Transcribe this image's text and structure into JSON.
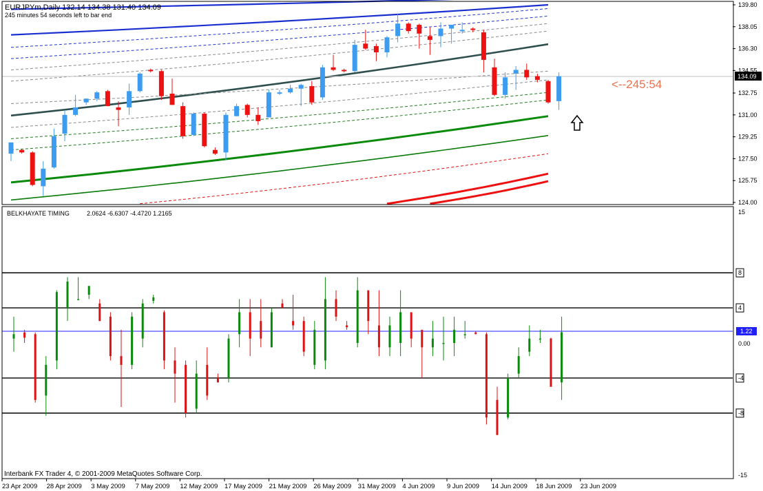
{
  "header": {
    "symbol_line": "EURJPYm,Daily  132.14 134.38 131.40 134.09",
    "timer_line": "245 minutes 54 seconds left to bar end"
  },
  "price_pane": {
    "countdown_label": "<--245:54",
    "current_price_label": "134.09",
    "current_price": 134.09,
    "y_range": [
      124.0,
      139.8
    ],
    "y_ticks": [
      "139.80",
      "138.05",
      "136.30",
      "134.55",
      "132.75",
      "131.00",
      "129.25",
      "127.50",
      "125.75",
      "124.00"
    ]
  },
  "indicator_pane": {
    "name": "BELKHAYATE TIMING",
    "values_line": "2.0624 -6.6307 -4.4720 1.2165",
    "y_range": [
      -15,
      15
    ],
    "y_ticks": [
      "15",
      "0.00",
      "-15"
    ],
    "level_labels": [
      "8",
      "4",
      "-4",
      "-8"
    ],
    "current_value_label": "1.22",
    "current_value": 1.22
  },
  "x_axis": {
    "labels": [
      "23 Apr 2009",
      "28 Apr 2009",
      "3 May 2009",
      "7 May 2009",
      "12 May 2009",
      "17 May 2009",
      "21 May 2009",
      "26 May 2009",
      "31 May 2009",
      "4 Jun 2009",
      "9 Jun 2009",
      "14 Jun 2009",
      "18 Jun 2009",
      "23 Jun 2009"
    ]
  },
  "footer": {
    "copyright": "Interbank FX Trader 4, © 2001-2009 MetaQuotes Software Corp."
  },
  "colors": {
    "bull": "#3d9cf0",
    "bear": "#ee1111",
    "mid_band": "#2f4f4f",
    "axis_text": "#000000",
    "countdown": "#f07050"
  },
  "chart_data": [
    {
      "type": "candlestick",
      "series_name": "EURJPYm,Daily",
      "ylim": [
        124.0,
        139.8
      ],
      "candles": [
        {
          "o": 127.9,
          "h": 128.7,
          "l": 127.3,
          "c": 128.8
        },
        {
          "o": 128.2,
          "h": 128.3,
          "l": 127.9,
          "c": 128.0
        },
        {
          "o": 128.0,
          "h": 128.1,
          "l": 125.3,
          "c": 125.4
        },
        {
          "o": 125.3,
          "h": 127.3,
          "l": 124.5,
          "c": 126.7
        },
        {
          "o": 126.8,
          "h": 129.9,
          "l": 126.7,
          "c": 129.3
        },
        {
          "o": 129.5,
          "h": 131.4,
          "l": 128.9,
          "c": 131.0
        },
        {
          "o": 131.0,
          "h": 132.6,
          "l": 130.9,
          "c": 131.6
        },
        {
          "o": 132.0,
          "h": 132.3,
          "l": 131.8,
          "c": 132.3
        },
        {
          "o": 132.3,
          "h": 132.9,
          "l": 132.1,
          "c": 132.8
        },
        {
          "o": 132.9,
          "h": 133.0,
          "l": 131.7,
          "c": 131.7
        },
        {
          "o": 131.6,
          "h": 132.1,
          "l": 130.1,
          "c": 131.4
        },
        {
          "o": 131.6,
          "h": 133.5,
          "l": 131.0,
          "c": 132.9
        },
        {
          "o": 132.9,
          "h": 134.4,
          "l": 132.8,
          "c": 134.3
        },
        {
          "o": 134.6,
          "h": 134.7,
          "l": 134.4,
          "c": 134.5
        },
        {
          "o": 134.5,
          "h": 134.6,
          "l": 132.2,
          "c": 132.5
        },
        {
          "o": 132.7,
          "h": 133.9,
          "l": 131.8,
          "c": 131.8
        },
        {
          "o": 131.7,
          "h": 132.0,
          "l": 129.1,
          "c": 129.3
        },
        {
          "o": 129.4,
          "h": 131.2,
          "l": 129.3,
          "c": 131.1
        },
        {
          "o": 131.1,
          "h": 131.2,
          "l": 128.4,
          "c": 128.5
        },
        {
          "o": 128.2,
          "h": 128.4,
          "l": 127.8,
          "c": 127.9
        },
        {
          "o": 128.0,
          "h": 131.2,
          "l": 127.4,
          "c": 131.0
        },
        {
          "o": 130.9,
          "h": 131.9,
          "l": 130.9,
          "c": 131.7
        },
        {
          "o": 131.8,
          "h": 131.9,
          "l": 130.8,
          "c": 131.0
        },
        {
          "o": 131.0,
          "h": 131.6,
          "l": 130.2,
          "c": 130.5
        },
        {
          "o": 130.8,
          "h": 133.0,
          "l": 130.8,
          "c": 132.8
        },
        {
          "o": 132.8,
          "h": 133.0,
          "l": 132.6,
          "c": 132.8
        },
        {
          "o": 132.8,
          "h": 133.4,
          "l": 132.7,
          "c": 133.1
        },
        {
          "o": 133.1,
          "h": 133.5,
          "l": 131.7,
          "c": 133.4
        },
        {
          "o": 133.3,
          "h": 133.7,
          "l": 131.8,
          "c": 132.0
        },
        {
          "o": 132.4,
          "h": 135.0,
          "l": 132.2,
          "c": 134.8
        },
        {
          "o": 134.8,
          "h": 135.8,
          "l": 134.5,
          "c": 134.6
        },
        {
          "o": 134.6,
          "h": 134.7,
          "l": 134.4,
          "c": 134.5
        },
        {
          "o": 134.5,
          "h": 137.0,
          "l": 134.4,
          "c": 136.6
        },
        {
          "o": 136.7,
          "h": 137.8,
          "l": 136.2,
          "c": 136.3
        },
        {
          "o": 136.5,
          "h": 136.7,
          "l": 135.3,
          "c": 136.0
        },
        {
          "o": 136.0,
          "h": 137.3,
          "l": 135.6,
          "c": 137.2
        },
        {
          "o": 137.3,
          "h": 139.1,
          "l": 136.8,
          "c": 138.3
        },
        {
          "o": 138.3,
          "h": 138.4,
          "l": 137.5,
          "c": 137.7
        },
        {
          "o": 138.2,
          "h": 138.3,
          "l": 136.3,
          "c": 137.5
        },
        {
          "o": 137.3,
          "h": 138.0,
          "l": 135.8,
          "c": 137.0
        },
        {
          "o": 137.3,
          "h": 138.4,
          "l": 136.4,
          "c": 137.9
        },
        {
          "o": 137.9,
          "h": 138.2,
          "l": 136.7,
          "c": 138.2
        },
        {
          "o": 137.8,
          "h": 138.4,
          "l": 137.5,
          "c": 137.8
        },
        {
          "o": 137.9,
          "h": 138.0,
          "l": 137.6,
          "c": 137.8
        },
        {
          "o": 137.6,
          "h": 137.8,
          "l": 134.4,
          "c": 135.4
        },
        {
          "o": 134.8,
          "h": 135.5,
          "l": 132.5,
          "c": 132.6
        },
        {
          "o": 132.6,
          "h": 134.4,
          "l": 132.3,
          "c": 134.0
        },
        {
          "o": 134.3,
          "h": 134.9,
          "l": 133.0,
          "c": 134.6
        },
        {
          "o": 134.6,
          "h": 135.1,
          "l": 133.8,
          "c": 134.0
        },
        {
          "o": 134.1,
          "h": 134.3,
          "l": 133.6,
          "c": 133.8
        },
        {
          "o": 133.7,
          "h": 133.8,
          "l": 131.9,
          "c": 132.0
        },
        {
          "o": 132.1,
          "h": 134.4,
          "l": 131.4,
          "c": 134.09
        }
      ],
      "bands": [
        {
          "style": "blue-solid",
          "values": [
            [
              0,
              139.45
            ],
            [
              50,
              140.45
            ]
          ]
        },
        {
          "style": "blue-solid",
          "values": [
            [
              0,
              137.4
            ],
            [
              50,
              139.8
            ]
          ]
        },
        {
          "style": "blue-dash",
          "values": [
            [
              0,
              136.4
            ],
            [
              50,
              139.5
            ]
          ]
        },
        {
          "style": "blue-dash",
          "values": [
            [
              0,
              135.5
            ],
            [
              50,
              138.9
            ]
          ]
        },
        {
          "style": "gray-dash",
          "values": [
            [
              0,
              134.6
            ],
            [
              50,
              138.3
            ]
          ]
        },
        {
          "style": "gray-dash",
          "values": [
            [
              0,
              133.7
            ],
            [
              50,
              137.7
            ]
          ]
        },
        {
          "style": "slate-solid",
          "values": [
            [
              0,
              130.95
            ],
            [
              50,
              136.65
            ]
          ]
        },
        {
          "style": "gray-dash",
          "values": [
            [
              0,
              131.9
            ],
            [
              50,
              134.5
            ]
          ]
        },
        {
          "style": "gray-dash",
          "values": [
            [
              0,
              130.0
            ],
            [
              50,
              133.8
            ]
          ]
        },
        {
          "style": "green-dash",
          "values": [
            [
              0,
              129.1
            ],
            [
              50,
              132.8
            ]
          ]
        },
        {
          "style": "green-dash",
          "values": [
            [
              0,
              128.2
            ],
            [
              50,
              132.2
            ]
          ]
        },
        {
          "style": "green-solid-thick",
          "values": [
            [
              0,
              125.6
            ],
            [
              50,
              130.9
            ]
          ]
        },
        {
          "style": "green-solid",
          "values": [
            [
              0,
              124.2
            ],
            [
              50,
              129.35
            ]
          ]
        },
        {
          "style": "red-dash",
          "values": [
            [
              12,
              123.9
            ],
            [
              50,
              127.9
            ]
          ]
        },
        {
          "style": "red-solid-thick",
          "values": [
            [
              35,
              123.9
            ],
            [
              50,
              126.3
            ]
          ]
        },
        {
          "style": "red-solid-thick",
          "values": [
            [
              39,
              123.9
            ],
            [
              50,
              125.7
            ]
          ]
        }
      ]
    },
    {
      "type": "bar",
      "series_name": "BELKHAYATE TIMING",
      "ylim": [
        -15,
        15
      ],
      "levels": [
        8,
        4,
        -4,
        -8
      ],
      "bars": [
        {
          "o": 0.5,
          "h": 3.0,
          "l": -1.0,
          "c": 1.0
        },
        {
          "o": 1.2,
          "h": 1.5,
          "l": 0.0,
          "c": 0.6
        },
        {
          "o": 1.0,
          "h": 1.2,
          "l": -6.8,
          "c": -6.5
        },
        {
          "o": -6.0,
          "h": -1.5,
          "l": -8.3,
          "c": -2.5
        },
        {
          "o": -2.0,
          "h": 6.0,
          "l": -3.0,
          "c": 5.8
        },
        {
          "o": 4.0,
          "h": 7.5,
          "l": 2.5,
          "c": 7.0
        },
        {
          "o": 5.0,
          "h": 7.5,
          "l": 5.0,
          "c": 5.0
        },
        {
          "o": 5.5,
          "h": 6.5,
          "l": 5.0,
          "c": 6.5
        },
        {
          "o": 4.5,
          "h": 5.0,
          "l": 2.5,
          "c": 2.5
        },
        {
          "o": 3.0,
          "h": 3.5,
          "l": -2.0,
          "c": -1.5
        },
        {
          "o": -1.5,
          "h": 1.5,
          "l": -7.3,
          "c": -2.5
        },
        {
          "o": -2.5,
          "h": 3.5,
          "l": -3.0,
          "c": 3.0
        },
        {
          "o": 0.5,
          "h": 5.0,
          "l": -0.5,
          "c": 4.5
        },
        {
          "o": 4.8,
          "h": 5.5,
          "l": 4.5,
          "c": 5.2
        },
        {
          "o": 3.5,
          "h": 3.7,
          "l": -3.0,
          "c": -2.0
        },
        {
          "o": -2.0,
          "h": -0.5,
          "l": -6.8,
          "c": -3.5
        },
        {
          "o": -2.5,
          "h": -2.0,
          "l": -8.5,
          "c": -8.0
        },
        {
          "o": -7.5,
          "h": -2.0,
          "l": -8.0,
          "c": -3.5
        },
        {
          "o": -2.5,
          "h": -0.5,
          "l": -6.5,
          "c": -6.0
        },
        {
          "o": -4.0,
          "h": -3.5,
          "l": -4.5,
          "c": -4.5
        },
        {
          "o": -4.0,
          "h": 1.0,
          "l": -4.5,
          "c": 0.5
        },
        {
          "o": 1.0,
          "h": 5.0,
          "l": -0.5,
          "c": 3.5
        },
        {
          "o": 3.5,
          "h": 5.0,
          "l": -1.5,
          "c": 0.5
        },
        {
          "o": 2.5,
          "h": 5.0,
          "l": -0.5,
          "c": 0.5
        },
        {
          "o": -0.5,
          "h": 4.0,
          "l": -0.5,
          "c": 3.5
        },
        {
          "o": 4.5,
          "h": 5.0,
          "l": 4.0,
          "c": 4.0
        },
        {
          "o": 2.5,
          "h": 5.5,
          "l": 1.5,
          "c": 2.0
        },
        {
          "o": 2.5,
          "h": 3.0,
          "l": -1.5,
          "c": -1.0
        },
        {
          "o": -2.5,
          "h": 2.5,
          "l": -3.0,
          "c": 1.5
        },
        {
          "o": -2.0,
          "h": 7.5,
          "l": -3.0,
          "c": 5.0
        },
        {
          "o": 5.0,
          "h": 6.0,
          "l": 2.5,
          "c": 3.0
        },
        {
          "o": 2.0,
          "h": 2.5,
          "l": 1.5,
          "c": 1.8
        },
        {
          "o": 0.0,
          "h": 7.5,
          "l": -0.5,
          "c": 6.0
        },
        {
          "o": 6.0,
          "h": 6.0,
          "l": 1.0,
          "c": 2.5
        },
        {
          "o": 2.0,
          "h": 6.0,
          "l": -1.5,
          "c": -0.5
        },
        {
          "o": -0.5,
          "h": 3.0,
          "l": -1.5,
          "c": 2.0
        },
        {
          "o": 0.0,
          "h": 6.0,
          "l": -1.5,
          "c": 3.5
        },
        {
          "o": 3.5,
          "h": 3.5,
          "l": -0.5,
          "c": 0.5
        },
        {
          "o": 1.5,
          "h": 1.5,
          "l": -4.0,
          "c": -0.5
        },
        {
          "o": -0.5,
          "h": 2.5,
          "l": -1.5,
          "c": 0.5
        },
        {
          "o": 0.0,
          "h": 3.0,
          "l": -2.0,
          "c": 0.0
        },
        {
          "o": 0.0,
          "h": 3.0,
          "l": -1.5,
          "c": 1.5
        },
        {
          "o": 1.0,
          "h": 2.5,
          "l": 0.5,
          "c": 1.0
        },
        {
          "o": 1.2,
          "h": 1.3,
          "l": 1.0,
          "c": 1.0
        },
        {
          "o": 1.0,
          "h": 1.2,
          "l": -9.3,
          "c": -8.5
        },
        {
          "o": -6.5,
          "h": -5.0,
          "l": -10.5,
          "c": -10.5
        },
        {
          "o": -8.5,
          "h": -3.5,
          "l": -8.7,
          "c": -4.0
        },
        {
          "o": -3.5,
          "h": -0.5,
          "l": -4.0,
          "c": -1.5
        },
        {
          "o": -1.0,
          "h": 2.0,
          "l": -1.5,
          "c": 0.5
        },
        {
          "o": 0.5,
          "h": 1.5,
          "l": 0.0,
          "c": 0.5
        },
        {
          "o": 0.5,
          "h": 0.6,
          "l": -5.0,
          "c": -5.0
        },
        {
          "o": -4.5,
          "h": 3.0,
          "l": -6.5,
          "c": 1.22
        }
      ]
    }
  ]
}
